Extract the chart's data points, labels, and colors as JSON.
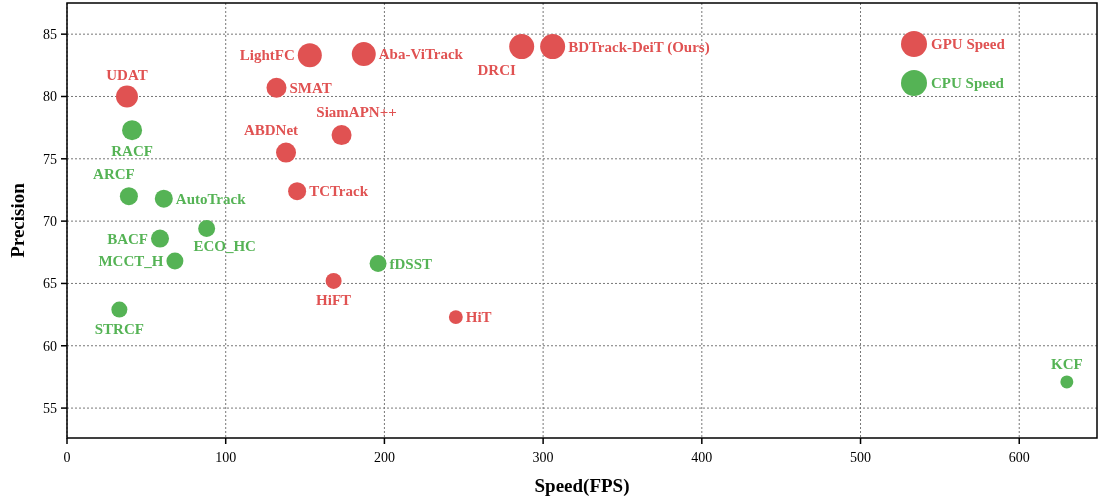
{
  "chart_data": {
    "type": "bubble",
    "xlabel": "Speed(FPS)",
    "ylabel": "Precision",
    "xlim": [
      0,
      649
    ],
    "ylim": [
      52.6,
      87.5
    ],
    "xticks": [
      0,
      100,
      200,
      300,
      400,
      500,
      600
    ],
    "yticks": [
      55,
      60,
      65,
      70,
      75,
      80,
      85
    ],
    "grid": true,
    "legend": "top right",
    "series": [
      {
        "name": "GPU Speed",
        "color": "#e05252",
        "x": [
          37.8,
          153,
          187,
          132,
          173,
          138,
          145,
          168,
          245,
          286.5,
          306
        ],
        "values": [
          80.0,
          83.3,
          83.4,
          80.7,
          76.9,
          75.5,
          72.4,
          65.2,
          62.3,
          84.0,
          84.0
        ],
        "sizes": [
          0.77,
          0.92,
          0.92,
          0.64,
          0.64,
          0.64,
          0.52,
          0.41,
          0.31,
          1,
          1
        ]
      },
      {
        "name": "CPU Speed",
        "color": "#55b355",
        "x": [
          41,
          39,
          61,
          58.6,
          88,
          68,
          33,
          196,
          630
        ],
        "values": [
          77.3,
          72.0,
          71.8,
          68.6,
          69.4,
          66.8,
          62.9,
          66.6,
          57.1
        ],
        "sizes": [
          0.64,
          0.52,
          0.52,
          0.52,
          0.46,
          0.46,
          0.41,
          0.46,
          0.27
        ]
      }
    ],
    "annotations": [
      {
        "text": "UDAT",
        "x": 37.8,
        "y": 80.0
      },
      {
        "text": "LightFC",
        "x": 153,
        "y": 83.3
      },
      {
        "text": "Aba-ViTrack",
        "x": 187,
        "y": 83.4
      },
      {
        "text": "SMAT",
        "x": 132,
        "y": 80.7
      },
      {
        "text": "SiamAPN++",
        "x": 173,
        "y": 76.9
      },
      {
        "text": "ABDNet",
        "x": 138,
        "y": 75.5
      },
      {
        "text": "TCTrack",
        "x": 145,
        "y": 72.4
      },
      {
        "text": "HiFT",
        "x": 168,
        "y": 65.2
      },
      {
        "text": "HiT",
        "x": 245,
        "y": 62.3
      },
      {
        "text": "DRCI",
        "x": 286.5,
        "y": 84.0
      },
      {
        "text": "BDTrack-DeiT (Ours)",
        "x": 306,
        "y": 84.0
      },
      {
        "text": "RACF",
        "x": 41,
        "y": 77.3
      },
      {
        "text": "ARCF",
        "x": 39,
        "y": 72.0
      },
      {
        "text": "AutoTrack",
        "x": 61,
        "y": 71.8
      },
      {
        "text": "BACF",
        "x": 58.6,
        "y": 68.6
      },
      {
        "text": "ECO_HC",
        "x": 88,
        "y": 69.4
      },
      {
        "text": "MCCT_H",
        "x": 68,
        "y": 66.8
      },
      {
        "text": "STRCF",
        "x": 33,
        "y": 62.9
      },
      {
        "text": "fDSST",
        "x": 196,
        "y": 66.6
      },
      {
        "text": "KCF",
        "x": 630,
        "y": 57.1
      }
    ]
  }
}
